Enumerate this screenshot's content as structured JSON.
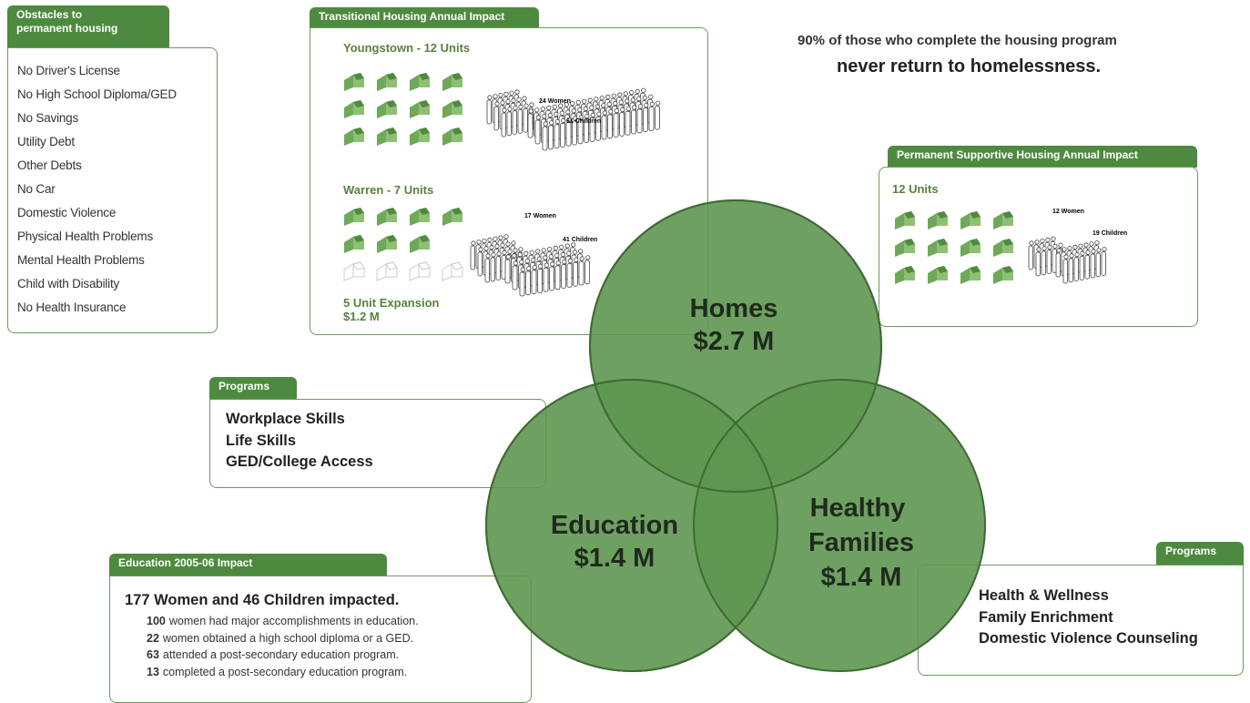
{
  "obstacles": {
    "title": [
      "Obstacles to",
      "permanent housing"
    ],
    "items": [
      "No Driver's License",
      "No High School Diploma/GED",
      "No Savings",
      "Utility Debt",
      "Other Debts",
      "No Car",
      "Domestic Violence",
      "Physical Health Problems",
      "Mental Health Problems",
      "Child with Disability",
      "No Health Insurance"
    ]
  },
  "transitional": {
    "title": "Transitional Housing Annual Impact",
    "youngstown": {
      "label": "Youngstown - 12 Units",
      "women": "24 Women",
      "children": "61 Children"
    },
    "warren": {
      "label": "Warren - 7 Units",
      "women": "17 Women",
      "children": "41 Children"
    },
    "expansion": [
      "5 Unit Expansion",
      "$1.2 M"
    ]
  },
  "stat": {
    "line1": "90% of those who complete the housing program",
    "line2": "never return to homelessness."
  },
  "permanent": {
    "title": "Permanent Supportive Housing Annual Impact",
    "units": "12 Units",
    "women": "12 Women",
    "children": "19 Children"
  },
  "circles": [
    {
      "label": [
        "Homes"
      ],
      "amount": "$2.7 M"
    },
    {
      "label": [
        "Education"
      ],
      "amount": "$1.4 M"
    },
    {
      "label": [
        "Healthy",
        "Families"
      ],
      "amount": "$1.4 M"
    }
  ],
  "programs_left": {
    "title": "Programs",
    "items": [
      "Workplace Skills",
      "Life Skills",
      "GED/College Access"
    ]
  },
  "programs_right": {
    "title": "Programs",
    "items": [
      "Health & Wellness",
      "Family Enrichment",
      "Domestic Violence Counseling"
    ]
  },
  "education": {
    "title": "Education 2005-06 Impact",
    "headline": "177 Women and 46 Children impacted.",
    "items": [
      {
        "number": "100",
        "text": "women had major accomplishments in education."
      },
      {
        "number": "22",
        "text": "women obtained a high school diploma or a GED."
      },
      {
        "number": "63",
        "text": "attended a post-secondary education program."
      },
      {
        "number": "13",
        "text": "completed a post-secondary education program."
      }
    ]
  }
}
